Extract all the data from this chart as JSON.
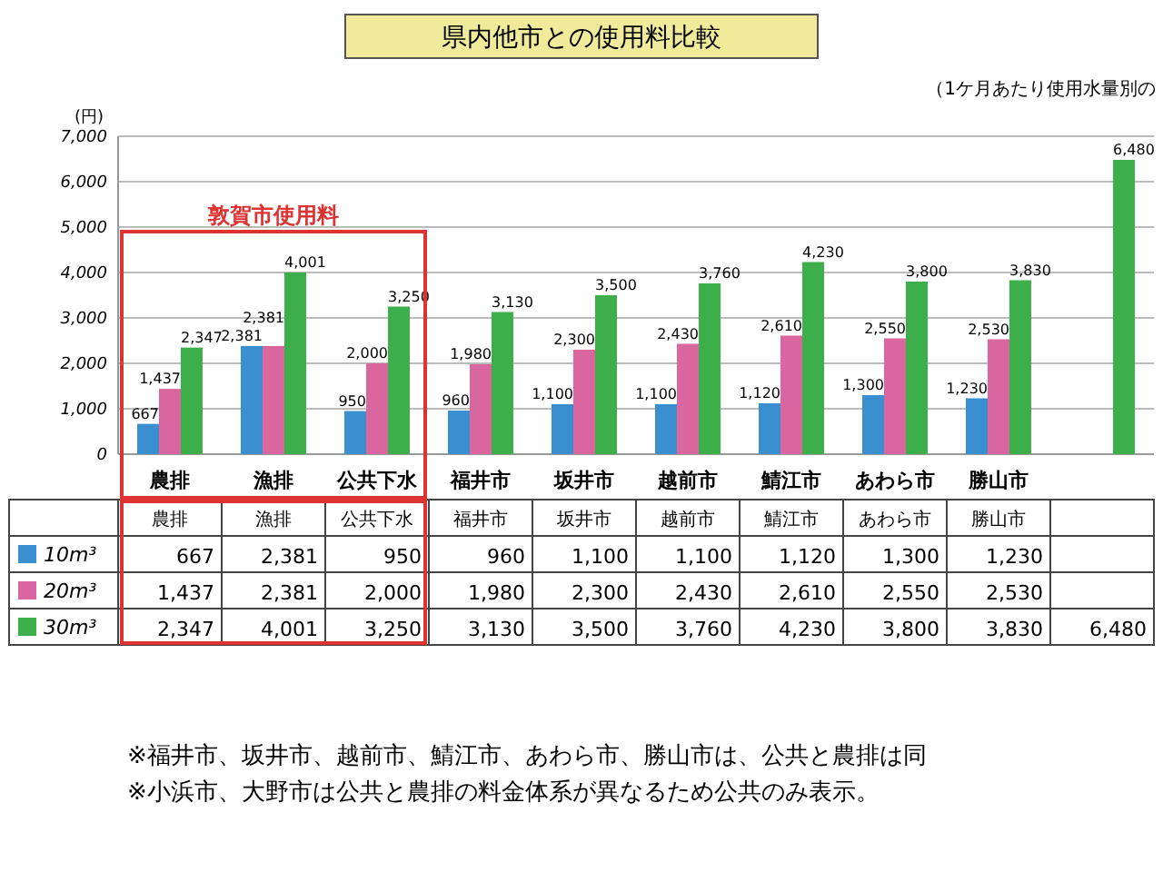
{
  "chart_data": {
    "type": "bar",
    "title": "県内他市との使用料比較",
    "subtitle": "（1ケ月あたり使用水量別の",
    "ylabel": "(円)",
    "categories": [
      "農排",
      "漁排",
      "公共下水",
      "福井市",
      "坂井市",
      "越前市",
      "鯖江市",
      "あわら市",
      "勝山市",
      null
    ],
    "series": [
      {
        "name": "10m³",
        "color": "#3a8fd0",
        "values": [
          667,
          2381,
          950,
          960,
          1100,
          1100,
          1120,
          1300,
          1230,
          null
        ],
        "value_labels": [
          "667",
          "2,381",
          "950",
          "960",
          "1,100",
          "1,100",
          "1,120",
          "1,300",
          "1,230",
          null
        ]
      },
      {
        "name": "20m³",
        "color": "#d9669f",
        "values": [
          1437,
          2381,
          2000,
          1980,
          2300,
          2430,
          2610,
          2550,
          2530,
          null
        ],
        "value_labels": [
          "1,437",
          "2,381",
          "2,000",
          "1,980",
          "2,300",
          "2,430",
          "2,610",
          "2,550",
          "2,530",
          null
        ]
      },
      {
        "name": "30m³",
        "color": "#3cae4a",
        "values": [
          2347,
          4001,
          3250,
          3130,
          3500,
          3760,
          4230,
          3800,
          3830,
          6480
        ],
        "value_labels": [
          "2,347",
          "4,001",
          "3,250",
          "3,130",
          "3,500",
          "3,760",
          "4,230",
          "3,800",
          "3,830",
          "6,480"
        ]
      }
    ],
    "ylim": [
      0,
      7000
    ],
    "yticks": [
      0,
      {
        "value": 1000,
        "label": "1,000"
      },
      {
        "value": 2000,
        "label": "2,000"
      },
      {
        "value": 3000,
        "label": "3,000"
      },
      {
        "value": 4000,
        "label": "4,000"
      },
      {
        "value": 5000,
        "label": "5,000"
      },
      {
        "value": 6000,
        "label": "6,000"
      },
      {
        "value": 7000,
        "label": "7,000"
      }
    ],
    "grid": "y",
    "legend": "bottom",
    "annotations": [
      "敦賀市使用料",
      "※福井市、坂井市、越前市、鯖江市、あわら市、勝山市は、公共と農排は同",
      "※小浜市、大野市は公共と農排の料金体系が異なるため公共のみ表示。"
    ]
  }
}
